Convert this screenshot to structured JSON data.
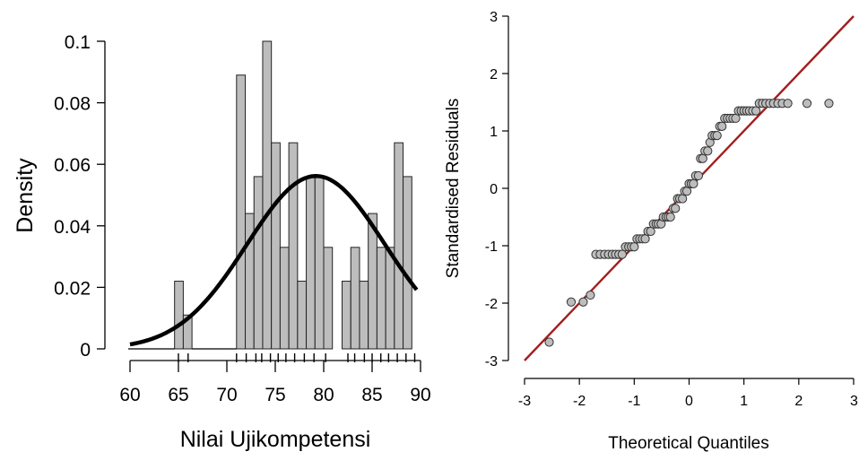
{
  "chart_data": [
    {
      "type": "bar",
      "title": "",
      "xlabel": "Nilai Ujikompetensi",
      "ylabel": "Density",
      "xlim": [
        60,
        90
      ],
      "ylim": [
        0,
        0.1
      ],
      "x_ticks": [
        60,
        65,
        70,
        75,
        80,
        85,
        90
      ],
      "y_ticks": [
        0,
        0.02,
        0.04,
        0.06,
        0.08,
        0.1
      ],
      "x_tick_labels": [
        "60",
        "65",
        "70",
        "75",
        "80",
        "85",
        "90"
      ],
      "y_tick_labels": [
        "0",
        "0.02",
        "0.04",
        "0.06",
        "0.08",
        "0.1"
      ],
      "bin_width": 0.9,
      "bins": [
        {
          "start": 64.6,
          "value": 0.022
        },
        {
          "start": 65.5,
          "value": 0.011
        },
        {
          "start": 71.0,
          "value": 0.089
        },
        {
          "start": 71.9,
          "value": 0.044
        },
        {
          "start": 72.8,
          "value": 0.056
        },
        {
          "start": 73.7,
          "value": 0.1
        },
        {
          "start": 74.6,
          "value": 0.067
        },
        {
          "start": 75.5,
          "value": 0.033
        },
        {
          "start": 76.4,
          "value": 0.067
        },
        {
          "start": 77.3,
          "value": 0.022
        },
        {
          "start": 78.2,
          "value": 0.056
        },
        {
          "start": 79.1,
          "value": 0.056
        },
        {
          "start": 80.0,
          "value": 0.033
        },
        {
          "start": 81.0,
          "value": 0.0
        },
        {
          "start": 81.9,
          "value": 0.022
        },
        {
          "start": 82.8,
          "value": 0.033
        },
        {
          "start": 83.7,
          "value": 0.022
        },
        {
          "start": 84.6,
          "value": 0.044
        },
        {
          "start": 85.5,
          "value": 0.033
        },
        {
          "start": 86.4,
          "value": 0.033
        },
        {
          "start": 87.3,
          "value": 0.067
        },
        {
          "start": 88.2,
          "value": 0.056
        }
      ],
      "density_curve": {
        "mean": 79.2,
        "sd": 7.1,
        "x_range": [
          60,
          89.6
        ]
      },
      "rug": [
        65,
        66,
        71,
        72,
        73,
        73.6,
        74.5,
        75.3,
        76.1,
        77,
        78,
        79,
        80.2,
        82.5,
        83.2,
        84.2,
        85,
        85.9,
        86.7,
        87.6,
        88.5,
        89.4
      ]
    },
    {
      "type": "scatter",
      "title": "",
      "xlabel": "Theoretical Quantiles",
      "ylabel": "Standardised Residuals",
      "xlim": [
        -3,
        3
      ],
      "ylim": [
        -3,
        3
      ],
      "x_ticks": [
        -3,
        -2,
        -1,
        0,
        1,
        2,
        3
      ],
      "y_ticks": [
        -3,
        -2,
        -1,
        0,
        1,
        2,
        3
      ],
      "x_tick_labels": [
        "-3",
        "-2",
        "-1",
        "0",
        "1",
        "2",
        "3"
      ],
      "y_tick_labels": [
        "-3",
        "-2",
        "-1",
        "0",
        "1",
        "2",
        "3"
      ],
      "reference_line": {
        "from": [
          -3,
          -3
        ],
        "to": [
          3,
          3
        ],
        "color": "#a31d1d"
      },
      "point_color": "#bdbdbd",
      "points": [
        [
          -2.55,
          -2.68
        ],
        [
          -2.15,
          -1.98
        ],
        [
          -1.93,
          -1.98
        ],
        [
          -1.8,
          -1.86
        ],
        [
          -1.7,
          -1.15
        ],
        [
          -1.62,
          -1.15
        ],
        [
          -1.54,
          -1.15
        ],
        [
          -1.47,
          -1.15
        ],
        [
          -1.4,
          -1.15
        ],
        [
          -1.34,
          -1.15
        ],
        [
          -1.28,
          -1.15
        ],
        [
          -1.22,
          -1.15
        ],
        [
          -1.16,
          -1.02
        ],
        [
          -1.1,
          -1.02
        ],
        [
          -1.05,
          -1.02
        ],
        [
          -1.0,
          -1.02
        ],
        [
          -0.95,
          -0.88
        ],
        [
          -0.9,
          -0.88
        ],
        [
          -0.85,
          -0.88
        ],
        [
          -0.8,
          -0.88
        ],
        [
          -0.75,
          -0.75
        ],
        [
          -0.7,
          -0.75
        ],
        [
          -0.65,
          -0.62
        ],
        [
          -0.6,
          -0.62
        ],
        [
          -0.56,
          -0.62
        ],
        [
          -0.51,
          -0.62
        ],
        [
          -0.47,
          -0.5
        ],
        [
          -0.42,
          -0.5
        ],
        [
          -0.38,
          -0.5
        ],
        [
          -0.34,
          -0.5
        ],
        [
          -0.29,
          -0.35
        ],
        [
          -0.25,
          -0.35
        ],
        [
          -0.21,
          -0.18
        ],
        [
          -0.17,
          -0.18
        ],
        [
          -0.12,
          -0.18
        ],
        [
          -0.08,
          -0.05
        ],
        [
          -0.04,
          -0.05
        ],
        [
          0.0,
          0.08
        ],
        [
          0.04,
          0.08
        ],
        [
          0.08,
          0.08
        ],
        [
          0.12,
          0.22
        ],
        [
          0.17,
          0.22
        ],
        [
          0.21,
          0.52
        ],
        [
          0.25,
          0.52
        ],
        [
          0.29,
          0.65
        ],
        [
          0.34,
          0.65
        ],
        [
          0.38,
          0.8
        ],
        [
          0.42,
          0.92
        ],
        [
          0.47,
          0.92
        ],
        [
          0.51,
          0.92
        ],
        [
          0.56,
          1.08
        ],
        [
          0.6,
          1.08
        ],
        [
          0.65,
          1.22
        ],
        [
          0.7,
          1.22
        ],
        [
          0.75,
          1.22
        ],
        [
          0.8,
          1.22
        ],
        [
          0.85,
          1.22
        ],
        [
          0.9,
          1.35
        ],
        [
          0.95,
          1.35
        ],
        [
          1.0,
          1.35
        ],
        [
          1.05,
          1.35
        ],
        [
          1.1,
          1.35
        ],
        [
          1.16,
          1.35
        ],
        [
          1.22,
          1.35
        ],
        [
          1.28,
          1.48
        ],
        [
          1.34,
          1.48
        ],
        [
          1.4,
          1.48
        ],
        [
          1.47,
          1.48
        ],
        [
          1.54,
          1.48
        ],
        [
          1.62,
          1.48
        ],
        [
          1.7,
          1.48
        ],
        [
          1.8,
          1.48
        ],
        [
          2.15,
          1.48
        ],
        [
          2.55,
          1.48
        ]
      ]
    }
  ]
}
